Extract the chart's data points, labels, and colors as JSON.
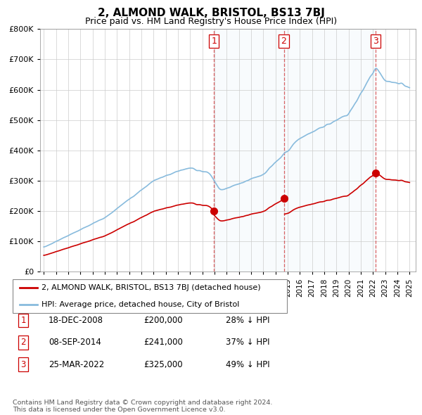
{
  "title": "2, ALMOND WALK, BRISTOL, BS13 7BJ",
  "subtitle": "Price paid vs. HM Land Registry's House Price Index (HPI)",
  "ylim": [
    0,
    800000
  ],
  "yticks": [
    0,
    100000,
    200000,
    300000,
    400000,
    500000,
    600000,
    700000,
    800000
  ],
  "house_color": "#cc0000",
  "hpi_color": "#88bbdd",
  "legend_house": "2, ALMOND WALK, BRISTOL, BS13 7BJ (detached house)",
  "legend_hpi": "HPI: Average price, detached house, City of Bristol",
  "purchase_dates_yr": [
    2008.963,
    2014.686,
    2022.228
  ],
  "purchase_prices": [
    200000,
    241000,
    325000
  ],
  "purchase_labels": [
    "1",
    "2",
    "3"
  ],
  "table_rows": [
    {
      "num": "1",
      "date": "18-DEC-2008",
      "price": "£200,000",
      "hpi": "28% ↓ HPI"
    },
    {
      "num": "2",
      "date": "08-SEP-2014",
      "price": "£241,000",
      "hpi": "37% ↓ HPI"
    },
    {
      "num": "3",
      "date": "25-MAR-2022",
      "price": "£325,000",
      "hpi": "49% ↓ HPI"
    }
  ],
  "footnote": "Contains HM Land Registry data © Crown copyright and database right 2024.\nThis data is licensed under the Open Government Licence v3.0.",
  "background_color": "#ffffff",
  "plot_bg_color": "#ffffff",
  "grid_color": "#cccccc",
  "xlim": [
    1994.7,
    2025.5
  ],
  "xtick_start": 1995,
  "xtick_end": 2025
}
